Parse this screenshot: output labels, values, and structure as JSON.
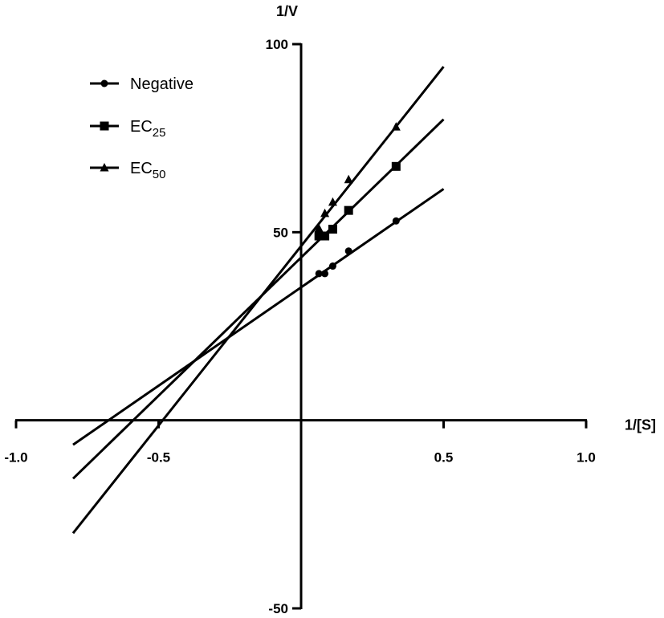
{
  "chart_data": {
    "type": "scatter",
    "title": "",
    "xlabel": "1/[S]",
    "ylabel": "1/V",
    "xlim": [
      -1.0,
      1.0
    ],
    "ylim": [
      -50,
      100
    ],
    "x_ticks": [
      -1.0,
      -0.5,
      0.5,
      1.0
    ],
    "x_tick_labels": [
      "-1.0",
      "-0.5",
      "0.5",
      "1.0"
    ],
    "y_ticks": [
      -50,
      50,
      100
    ],
    "y_tick_labels": [
      "-50",
      "50",
      "100"
    ],
    "grid": false,
    "legend_position": "top-left",
    "series": [
      {
        "name": "Negative",
        "legend_main": "Negative",
        "legend_sub": "",
        "marker": "circle",
        "x": [
          0.0625,
          0.0833,
          0.1111,
          0.1667,
          0.3333
        ],
        "y": [
          39.0,
          39.0,
          41.0,
          45.0,
          53.0
        ],
        "fit": {
          "x": [
            -0.8,
            0.5
          ],
          "y": [
            -6.5,
            61.5
          ]
        }
      },
      {
        "name": "EC25",
        "legend_main": "EC",
        "legend_sub": "25",
        "marker": "square",
        "x": [
          0.0625,
          0.0833,
          0.1111,
          0.1667,
          0.3333
        ],
        "y": [
          49.0,
          49.0,
          50.8,
          55.8,
          67.5
        ],
        "fit": {
          "x": [
            -0.8,
            0.5
          ],
          "y": [
            -15.5,
            80.0
          ]
        }
      },
      {
        "name": "EC50",
        "legend_main": "EC",
        "legend_sub": "50",
        "marker": "triangle",
        "x": [
          0.0625,
          0.0833,
          0.1111,
          0.1667,
          0.3333
        ],
        "y": [
          51.0,
          55.0,
          58.0,
          64.0,
          78.0
        ],
        "fit": {
          "x": [
            -0.8,
            0.5
          ],
          "y": [
            -30.0,
            94.0
          ]
        }
      }
    ]
  }
}
